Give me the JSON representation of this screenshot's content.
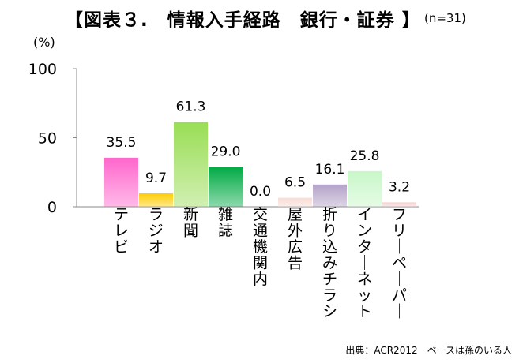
{
  "page_title": "【図表３.　情報入手経路　銀行・証券 】",
  "sample_size": "(n=31)",
  "source_note": "出典：ACR2012　ベースは孫のいる人",
  "chart_data": {
    "type": "bar",
    "title": "【図表３.　情報入手経路　銀行・証券 】",
    "subtitle": "(n=31)",
    "ylabel": "(%)",
    "xlabel": "",
    "ylim": [
      0,
      100
    ],
    "yticks": [
      "0",
      "50",
      "100"
    ],
    "grid": false,
    "categories": [
      "テレビ",
      "ラジオ",
      "新聞",
      "雑誌",
      "交通機関内",
      "屋外広告",
      "折り込みチラシ",
      "インターネット",
      "フリーペーパー"
    ],
    "values": [
      35.5,
      9.7,
      61.3,
      29.0,
      0.0,
      6.5,
      16.1,
      25.8,
      3.2
    ],
    "value_labels": [
      "35.5",
      "9.7",
      "61.3",
      "29.0",
      "0.0",
      "6.5",
      "16.1",
      "25.8",
      "3.2"
    ],
    "colors": [
      "#ff66cc",
      "#ffcc00",
      "#99dd55",
      "#00aa44",
      "#cccccc",
      "#f8dcd4",
      "#b3a2c8",
      "#c8f7c8",
      "#f5d0d0"
    ]
  }
}
